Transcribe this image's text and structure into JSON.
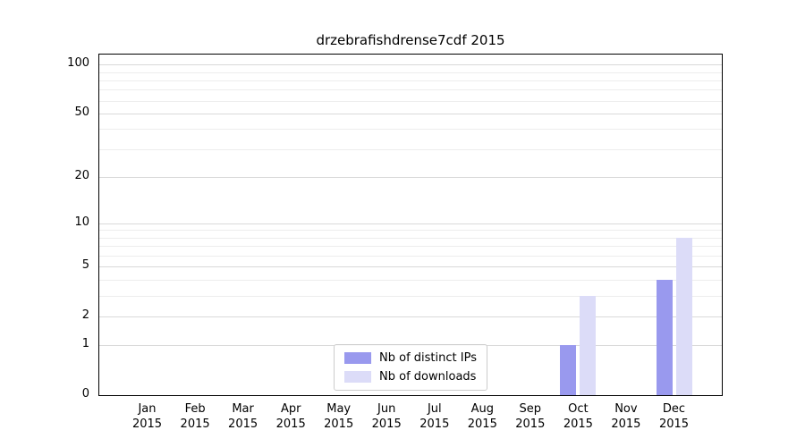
{
  "chart_data": {
    "type": "bar",
    "title": "drzebrafishdrense7cdf 2015",
    "categories": [
      "Jan 2015",
      "Feb 2015",
      "Mar 2015",
      "Apr 2015",
      "May 2015",
      "Jun 2015",
      "Jul 2015",
      "Aug 2015",
      "Sep 2015",
      "Oct 2015",
      "Nov 2015",
      "Dec 2015"
    ],
    "series": [
      {
        "name": "Nb of distinct IPs",
        "color": "#9999ee",
        "values": [
          0,
          0,
          0,
          0,
          0,
          0,
          0,
          0,
          0,
          1,
          0,
          4
        ]
      },
      {
        "name": "Nb of downloads",
        "color": "#dcdcf8",
        "values": [
          0,
          0,
          0,
          0,
          0,
          0,
          0,
          0,
          0,
          3,
          0,
          8
        ]
      }
    ],
    "xlabel": "",
    "ylabel": "",
    "yscale": "log1p",
    "ylim": [
      0,
      115
    ],
    "yticks": [
      0,
      1,
      2,
      5,
      10,
      20,
      50,
      100
    ],
    "yminorticks": [
      3,
      4,
      6,
      7,
      8,
      9,
      30,
      40,
      60,
      70,
      80,
      90
    ],
    "grid": "horizontal",
    "legend_position": "lower center"
  },
  "colors": {
    "grid_major": "#d9d9d9",
    "grid_minor": "#ededed",
    "axis": "#000000",
    "background": "#ffffff",
    "legend_border": "#cccccc"
  }
}
